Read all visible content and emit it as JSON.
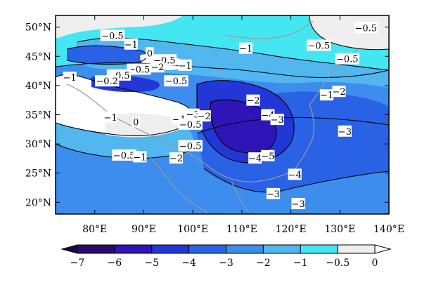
{
  "map": {
    "lon_range": [
      72,
      140
    ],
    "lat_range": [
      18,
      52
    ],
    "x_ticks": [
      "80°E",
      "90°E",
      "100°E",
      "110°E",
      "120°E",
      "130°E",
      "140°E"
    ],
    "x_tick_values": [
      80,
      90,
      100,
      110,
      120,
      130,
      140
    ],
    "y_ticks": [
      "20°N",
      "25°N",
      "30°N",
      "35°N",
      "40°N",
      "45°N",
      "50°N"
    ],
    "y_tick_values": [
      20,
      25,
      30,
      35,
      40,
      45,
      50
    ],
    "fill_levels": [
      {
        "value": -7,
        "color": "#2a0a6e"
      },
      {
        "value": -6,
        "color": "#2f14b8"
      },
      {
        "value": -5,
        "color": "#2336d6"
      },
      {
        "value": -4,
        "color": "#2a62e6"
      },
      {
        "value": -3,
        "color": "#3c8ded"
      },
      {
        "value": -2,
        "color": "#52b6ef"
      },
      {
        "value": -1,
        "color": "#44e6f2"
      },
      {
        "value": -0.5,
        "color": "#eeeeee"
      },
      {
        "value": 0,
        "color": "#ffffff"
      }
    ],
    "contour_labels": [
      {
        "text": "-0.5",
        "lon": 83.6,
        "lat": 48.6
      },
      {
        "text": "-1",
        "lon": 87.4,
        "lat": 47.1
      },
      {
        "text": "0",
        "lon": 91.2,
        "lat": 45.6
      },
      {
        "text": "-0.5",
        "lon": 94.2,
        "lat": 44.4
      },
      {
        "text": "-1",
        "lon": 98.4,
        "lat": 43.5
      },
      {
        "text": "-0.5",
        "lon": 89.0,
        "lat": 42.8
      },
      {
        "text": "-2",
        "lon": 92.8,
        "lat": 43.2
      },
      {
        "text": "-0.5",
        "lon": 84.9,
        "lat": 41.8
      },
      {
        "text": "-0.2",
        "lon": 82.5,
        "lat": 40.8
      },
      {
        "text": "-1",
        "lon": 74.9,
        "lat": 41.4
      },
      {
        "text": "-0.5",
        "lon": 96.6,
        "lat": 40.8
      },
      {
        "text": "-1",
        "lon": 110.8,
        "lat": 46.4
      },
      {
        "text": "-0.5",
        "lon": 135.3,
        "lat": 49.9
      },
      {
        "text": "-0.5",
        "lon": 125.7,
        "lat": 46.9
      },
      {
        "text": "-0.5",
        "lon": 131.5,
        "lat": 44.6
      },
      {
        "text": "-1",
        "lon": 127.3,
        "lat": 38.4
      },
      {
        "text": "-2",
        "lon": 129.8,
        "lat": 39.0
      },
      {
        "text": "-2",
        "lon": 112.3,
        "lat": 37.5
      },
      {
        "text": "-4",
        "lon": 115.3,
        "lat": 35.0
      },
      {
        "text": "-3",
        "lon": 117.2,
        "lat": 34.2
      },
      {
        "text": "-3",
        "lon": 100.0,
        "lat": 35.1
      },
      {
        "text": "-2",
        "lon": 102.3,
        "lat": 34.8
      },
      {
        "text": "-1",
        "lon": 97.2,
        "lat": 34.3
      },
      {
        "text": "-0.5",
        "lon": 99.5,
        "lat": 33.4
      },
      {
        "text": "-1",
        "lon": 83.2,
        "lat": 34.6
      },
      {
        "text": "0",
        "lon": 88.4,
        "lat": 33.8
      },
      {
        "text": "-3",
        "lon": 131.0,
        "lat": 32.2
      },
      {
        "text": "-0.5",
        "lon": 99.5,
        "lat": 29.7
      },
      {
        "text": "-0.5",
        "lon": 86.0,
        "lat": 28.1
      },
      {
        "text": "-1",
        "lon": 89.2,
        "lat": 27.8
      },
      {
        "text": "-2",
        "lon": 96.6,
        "lat": 27.6
      },
      {
        "text": "-4",
        "lon": 112.7,
        "lat": 27.6
      },
      {
        "text": "-5",
        "lon": 115.3,
        "lat": 28.0
      },
      {
        "text": "-4",
        "lon": 120.8,
        "lat": 24.8
      },
      {
        "text": "-3",
        "lon": 116.4,
        "lat": 21.5
      },
      {
        "text": "-3",
        "lon": 121.5,
        "lat": 19.8
      }
    ]
  },
  "colorbar": {
    "tick_labels": [
      "-7",
      "-6",
      "-5",
      "-4",
      "-3",
      "-2",
      "-1",
      "-0.5",
      "0"
    ],
    "colors": [
      "#2a0a6e",
      "#2f14b8",
      "#2336d6",
      "#2a62e6",
      "#3c8ded",
      "#52b6ef",
      "#44e6f2",
      "#eeeeee"
    ],
    "under_color": "#1a0540",
    "over_color": "#ffffff"
  }
}
